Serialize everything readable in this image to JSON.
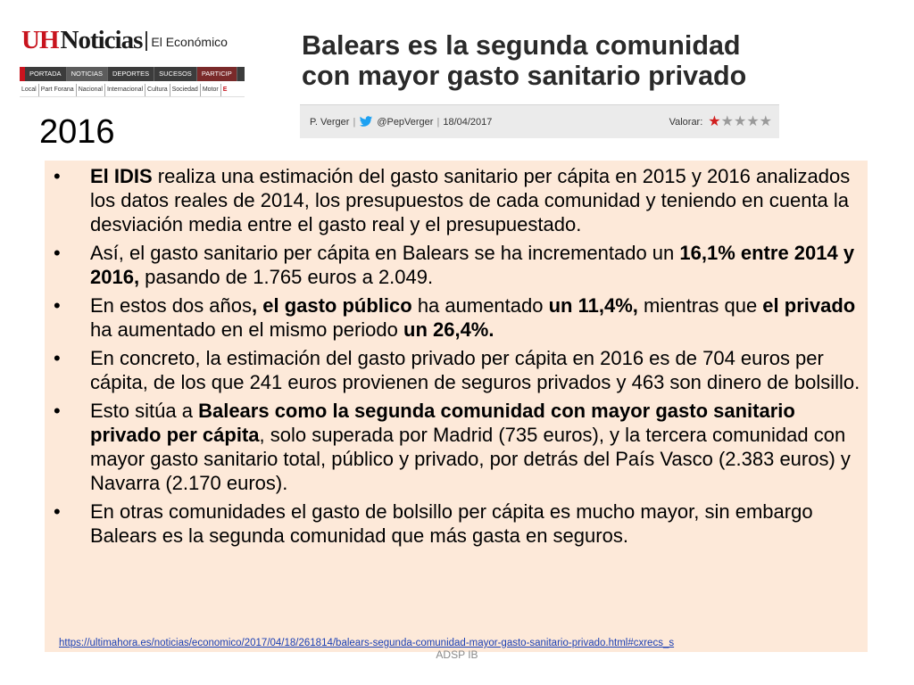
{
  "uh_header": {
    "logo_mark": "UH",
    "logo_name": "Noticias",
    "section": "El Económico",
    "nav": [
      "PORTADA",
      "NOTICIAS",
      "DEPORTES",
      "SUCESOS",
      "PARTICIP"
    ],
    "subnav": [
      "Local",
      "Part Forana",
      "Nacional",
      "Internacional",
      "Cultura",
      "Sociedad",
      "Motor",
      "E"
    ]
  },
  "article": {
    "headline": "Balears es la segunda comunidad con mayor gasto sanitario privado",
    "author": "P. Verger",
    "twitter_handle": "@PepVerger",
    "date": "18/04/2017",
    "rating_label": "Valorar:",
    "rating": 1,
    "rating_max": 5
  },
  "year_title": "2016",
  "bullets": [
    [
      {
        "t": "El IDIS",
        "b": true
      },
      {
        "t": " realiza una estimación del gasto sanitario per cápita en 2015 y 2016 analizados los datos reales de 2014, los presupuestos de cada comunidad y teniendo en cuenta la desviación media entre el gasto real y el presupuestado.",
        "b": false
      }
    ],
    [
      {
        "t": "Así, el gasto sanitario per cápita en Balears se ha incrementado un ",
        "b": false
      },
      {
        "t": "16,1% entre 2014 y 2016,",
        "b": true
      },
      {
        "t": " pasando de 1.765 euros a 2.049.",
        "b": false
      }
    ],
    [
      {
        "t": "En estos dos años",
        "b": false
      },
      {
        "t": ", el gasto público",
        "b": true
      },
      {
        "t": " ha aumentado ",
        "b": false
      },
      {
        "t": "un 11,4%,",
        "b": true
      },
      {
        "t": " mientras que ",
        "b": false
      },
      {
        "t": "el privado",
        "b": true
      },
      {
        "t": " ha aumentado en el mismo periodo ",
        "b": false
      },
      {
        "t": "un 26,4%.",
        "b": true
      }
    ],
    [
      {
        "t": "En concreto, la estimación del gasto privado per cápita en 2016 es de 704 euros per cápita, de los que 241 euros provienen de seguros privados y 463 son dinero de bolsillo.",
        "b": false
      }
    ],
    [
      {
        "t": "Esto sitúa a ",
        "b": false
      },
      {
        "t": "Balears como la segunda comunidad con mayor gasto sanitario privado per cápita",
        "b": true
      },
      {
        "t": ", solo superada por Madrid (735 euros), y la tercera comunidad con mayor gasto sanitario total, público y privado, por detrás del País Vasco (2.383 euros) y Navarra (2.170 euros).",
        "b": false
      }
    ],
    [
      {
        "t": "En otras comunidades el gasto de bolsillo per cápita es mucho mayor, sin embargo Balears es la segunda comunidad que más gasta en seguros.",
        "b": false
      }
    ]
  ],
  "source_url": "https://ultimahora.es/noticias/economico/2017/04/18/261814/balears-segunda-comunidad-mayor-gasto-sanitario-privado.html#cxrecs_s",
  "footer": "ADSP IB",
  "colors": {
    "content_bg": "#fde9d9",
    "uh_red": "#c8141e",
    "link": "#1a3fb4",
    "star_on": "#d11f1f",
    "star_off": "#9a9a9a"
  }
}
